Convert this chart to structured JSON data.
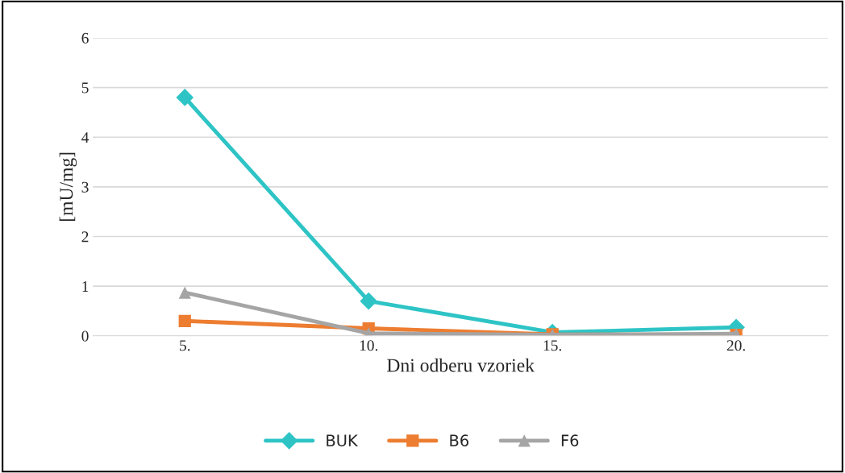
{
  "chart_data": {
    "type": "line",
    "xlabel": "Dni odberu vzoriek",
    "ylabel": "[mU/mg]",
    "categories": [
      "5.",
      "10.",
      "15.",
      "20."
    ],
    "series": [
      {
        "name": "BUK",
        "color": "#2ec4c6",
        "marker": "diamond",
        "values": [
          4.8,
          0.7,
          0.07,
          0.17
        ]
      },
      {
        "name": "B6",
        "color": "#ed7d31",
        "marker": "square",
        "values": [
          0.3,
          0.15,
          0.03,
          0.02
        ]
      },
      {
        "name": "F6",
        "color": "#a5a5a5",
        "marker": "triangle",
        "values": [
          0.87,
          0.05,
          0.02,
          0.04
        ]
      }
    ],
    "ylim": [
      0,
      6
    ],
    "yticks": [
      0,
      1,
      2,
      3,
      4,
      5,
      6
    ],
    "grid": "y",
    "legend": "bottom"
  }
}
